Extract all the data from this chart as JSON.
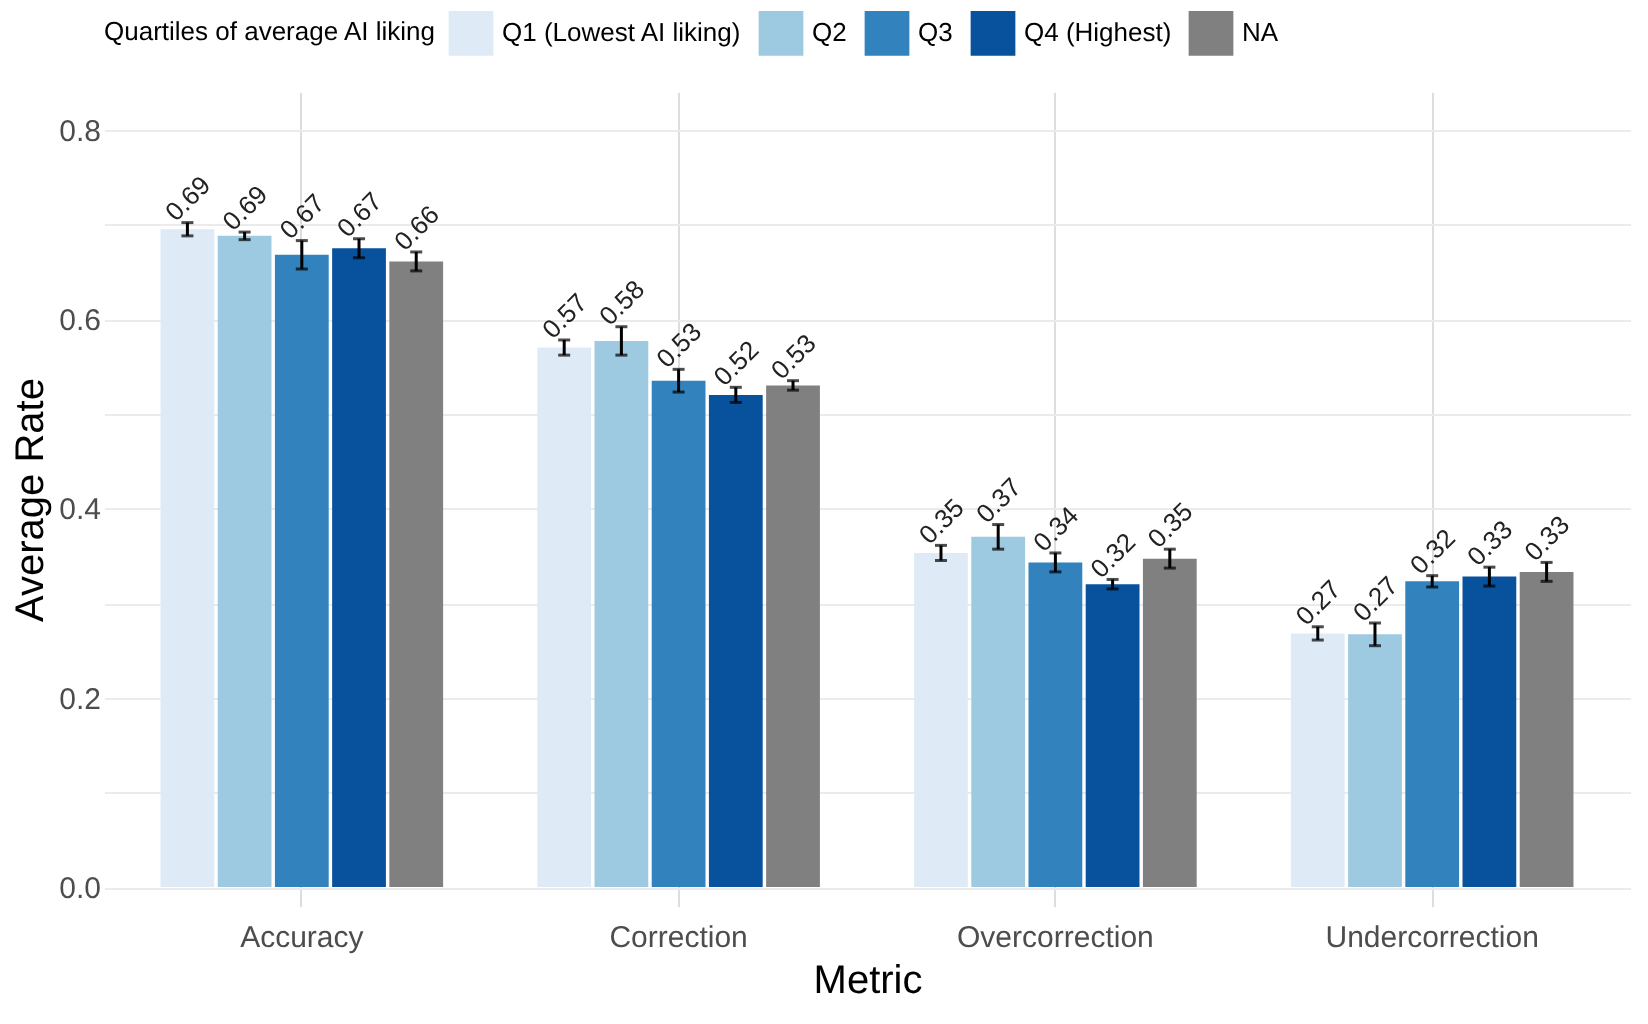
{
  "chart_data": {
    "type": "bar",
    "xlabel": "Metric",
    "ylabel": "Average Rate",
    "legend_title": "Quartiles of average AI liking",
    "categories": [
      "Accuracy",
      "Correction",
      "Overcorrection",
      "Undercorrection"
    ],
    "series": [
      {
        "name": "Q1 (Lowest AI liking)",
        "color": "#deebf7",
        "values": [
          0.695,
          0.57,
          0.353,
          0.268
        ],
        "errors": [
          0.007,
          0.008,
          0.008,
          0.007
        ],
        "value_labels": [
          "0.69",
          "0.57",
          "0.35",
          "0.27"
        ]
      },
      {
        "name": "Q2",
        "color": "#9ecae1",
        "values": [
          0.688,
          0.577,
          0.37,
          0.267
        ],
        "errors": [
          0.004,
          0.015,
          0.013,
          0.012
        ],
        "value_labels": [
          "0.69",
          "0.58",
          "0.37",
          "0.27"
        ]
      },
      {
        "name": "Q3",
        "color": "#3182bd",
        "values": [
          0.668,
          0.535,
          0.343,
          0.323
        ],
        "errors": [
          0.015,
          0.012,
          0.01,
          0.006
        ],
        "value_labels": [
          "0.67",
          "0.53",
          "0.34",
          "0.32"
        ]
      },
      {
        "name": "Q4 (Highest)",
        "color": "#08519c",
        "values": [
          0.675,
          0.52,
          0.32,
          0.328
        ],
        "errors": [
          0.01,
          0.008,
          0.005,
          0.01
        ],
        "value_labels": [
          "0.67",
          "0.52",
          "0.32",
          "0.33"
        ]
      },
      {
        "name": "NA",
        "color": "#808080",
        "values": [
          0.661,
          0.53,
          0.347,
          0.333
        ],
        "errors": [
          0.01,
          0.005,
          0.01,
          0.01
        ],
        "value_labels": [
          "0.66",
          "0.53",
          "0.35",
          "0.33"
        ]
      }
    ],
    "ylim": [
      -0.02,
      0.84
    ],
    "yticks": [
      {
        "value": 0,
        "label": "0.0"
      },
      {
        "value": 0.1,
        "label": null
      },
      0.2,
      {
        "value": 0.3,
        "label": null
      },
      0.4,
      {
        "value": 0.5,
        "label": null
      },
      0.6,
      {
        "value": 0.7,
        "label": null
      },
      0.8
    ],
    "grid": true,
    "legend": "top"
  }
}
